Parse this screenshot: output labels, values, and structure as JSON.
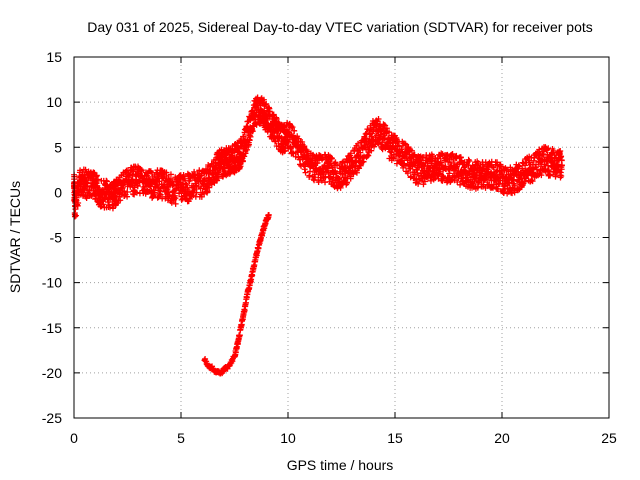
{
  "chart_data": {
    "type": "scatter",
    "title": "Day 031 of 2025, Sidereal Day-to-day VTEC variation (SDTVAR) for receiver pots",
    "xlabel": "GPS time / hours",
    "ylabel": "SDTVAR / TECUs",
    "xlim": [
      0,
      25
    ],
    "ylim": [
      -25,
      15
    ],
    "x_ticks": [
      0,
      5,
      10,
      15,
      20,
      25
    ],
    "y_ticks": [
      -25,
      -20,
      -15,
      -10,
      -5,
      0,
      5,
      10,
      15
    ],
    "grid": true,
    "marker": "+",
    "color": "#ff0000",
    "series": [
      {
        "name": "main band",
        "x": [
          0.0,
          0.05,
          0.3,
          0.5,
          0.8,
          1.0,
          1.2,
          1.5,
          1.8,
          2.0,
          2.3,
          2.6,
          2.9,
          3.2,
          3.5,
          3.8,
          4.1,
          4.4,
          4.7,
          5.0,
          5.3,
          5.6,
          6.0,
          6.3,
          6.6,
          6.8,
          7.0,
          7.2,
          7.4,
          7.6,
          7.8,
          8.0,
          8.2,
          8.4,
          8.6,
          8.8,
          9.0,
          9.2,
          9.4,
          9.6,
          9.8,
          10.0,
          10.3,
          10.6,
          10.9,
          11.2,
          11.5,
          11.8,
          12.1,
          12.4,
          12.7,
          13.0,
          13.3,
          13.6,
          13.9,
          14.2,
          14.5,
          14.8,
          15.1,
          15.4,
          15.7,
          16.0,
          16.3,
          16.6,
          16.9,
          17.2,
          17.5,
          17.8,
          18.1,
          18.4,
          18.7,
          19.0,
          19.3,
          19.6,
          19.9,
          20.2,
          20.5,
          20.8,
          21.1,
          21.4,
          21.7,
          22.0,
          22.3,
          22.6,
          22.8
        ],
        "y": [
          1.0,
          -1.5,
          1.2,
          1.0,
          0.7,
          0.6,
          0.0,
          -0.2,
          -0.6,
          0.2,
          0.9,
          1.1,
          1.4,
          1.2,
          0.8,
          0.9,
          0.9,
          0.6,
          0.2,
          0.6,
          0.5,
          0.7,
          1.0,
          1.6,
          2.5,
          3.2,
          3.3,
          3.4,
          3.6,
          3.9,
          4.3,
          5.5,
          7.0,
          8.5,
          9.2,
          9.0,
          8.2,
          7.6,
          6.9,
          6.2,
          5.8,
          6.3,
          5.4,
          4.5,
          3.4,
          2.9,
          2.6,
          2.7,
          2.3,
          1.5,
          2.3,
          3.0,
          4.0,
          5.0,
          6.2,
          6.8,
          6.0,
          5.1,
          4.6,
          4.0,
          3.3,
          2.5,
          2.4,
          2.7,
          3.0,
          2.8,
          2.6,
          2.8,
          2.3,
          2.1,
          2.0,
          1.9,
          2.0,
          2.0,
          1.6,
          1.3,
          1.4,
          1.7,
          2.4,
          2.5,
          3.4,
          3.5,
          3.3,
          3.1,
          3.0
        ]
      },
      {
        "name": "lower arc",
        "x": [
          6.1,
          6.3,
          6.5,
          6.7,
          6.9,
          7.1,
          7.3,
          7.5,
          7.6,
          7.7,
          7.8,
          7.9,
          8.0,
          8.1,
          8.2,
          8.3,
          8.4,
          8.5,
          8.6,
          8.7,
          8.8,
          8.9,
          9.0,
          9.1
        ],
        "y": [
          -18.6,
          -19.2,
          -19.6,
          -19.9,
          -19.9,
          -19.5,
          -19.0,
          -18.2,
          -17.3,
          -16.2,
          -15.0,
          -13.8,
          -12.6,
          -11.3,
          -10.3,
          -9.3,
          -8.2,
          -7.2,
          -6.2,
          -5.3,
          -4.5,
          -3.7,
          -3.0,
          -2.5
        ]
      }
    ]
  }
}
